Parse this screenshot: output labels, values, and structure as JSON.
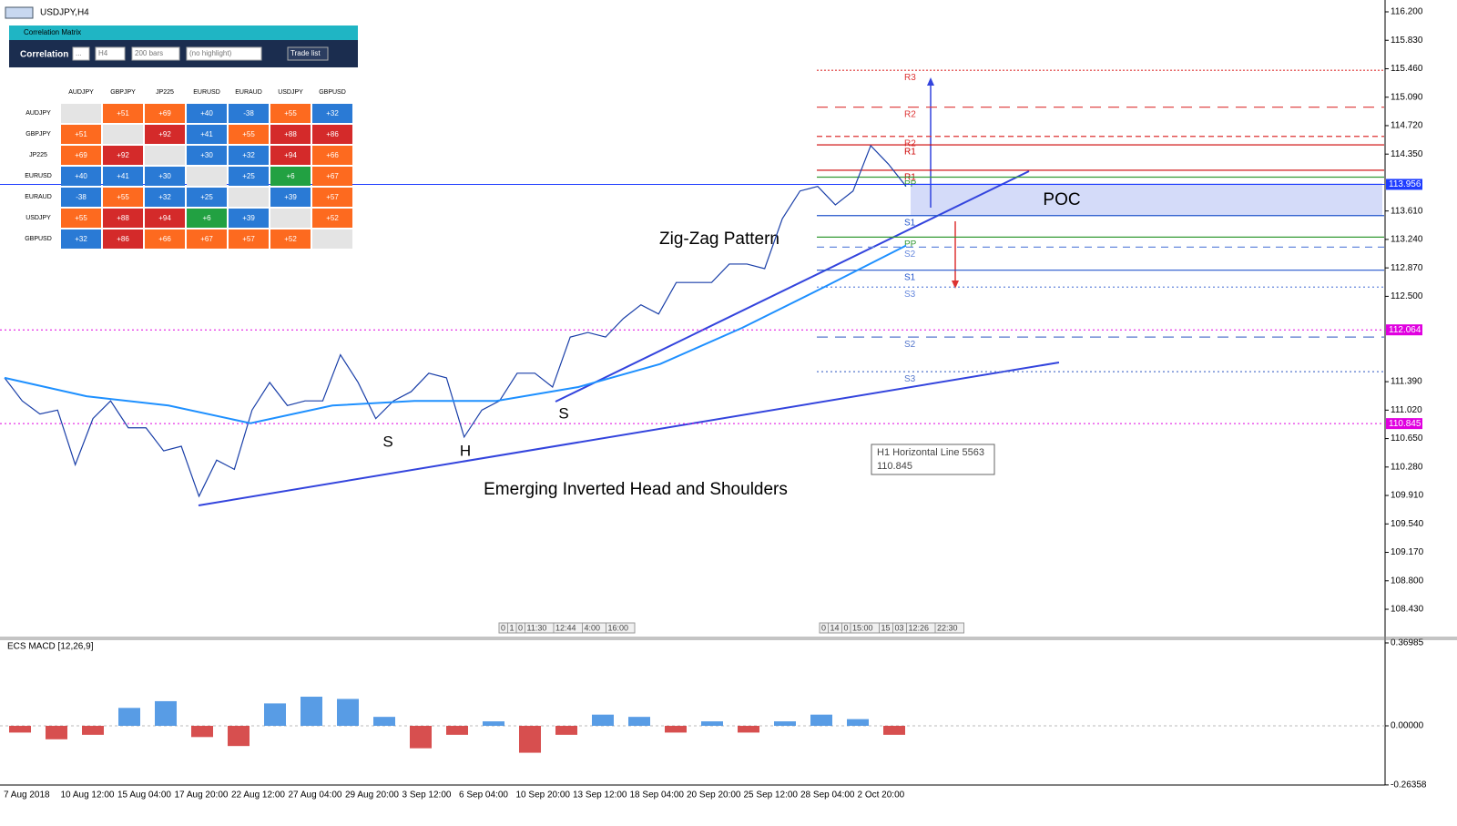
{
  "header": {
    "symbol": "USDJPY,H4"
  },
  "price_chart": {
    "ylim": [
      108.063,
      116.354
    ],
    "yticks": [
      {
        "value": 116.2,
        "label": "116.200"
      },
      {
        "value": 115.83,
        "label": "115.830"
      },
      {
        "value": 115.46,
        "label": "115.460"
      },
      {
        "value": 115.09,
        "label": "115.090"
      },
      {
        "value": 114.72,
        "label": "114.720"
      },
      {
        "value": 114.35,
        "label": "114.350"
      },
      {
        "value": 113.61,
        "label": "113.610"
      },
      {
        "value": 113.24,
        "label": "113.240"
      },
      {
        "value": 112.87,
        "label": "112.870"
      },
      {
        "value": 112.5,
        "label": "112.500"
      },
      {
        "value": 111.39,
        "label": "111.390"
      },
      {
        "value": 111.02,
        "label": "111.020"
      },
      {
        "value": 110.65,
        "label": "110.650"
      },
      {
        "value": 110.28,
        "label": "110.280"
      },
      {
        "value": 109.91,
        "label": "109.910"
      },
      {
        "value": 109.54,
        "label": "109.540"
      },
      {
        "value": 109.17,
        "label": "109.170"
      },
      {
        "value": 108.8,
        "label": "108.800"
      },
      {
        "value": 108.43,
        "label": "108.430"
      }
    ],
    "close": [
      111.44,
      111.14,
      110.97,
      111.02,
      110.31,
      110.91,
      111.14,
      110.79,
      110.79,
      110.49,
      110.55,
      109.9,
      110.37,
      110.25,
      111.02,
      111.38,
      111.08,
      111.14,
      111.14,
      111.74,
      111.38,
      110.91,
      111.14,
      111.26,
      111.5,
      111.44,
      110.67,
      111.02,
      111.14,
      111.5,
      111.5,
      111.32,
      111.97,
      112.03,
      111.97,
      112.21,
      112.39,
      112.27,
      112.68,
      112.68,
      112.68,
      112.92,
      112.92,
      112.86,
      113.51,
      113.87,
      113.93,
      113.69,
      113.87,
      114.46,
      114.22,
      113.93
    ],
    "moving_average": [
      111.44,
      111.2,
      111.08,
      110.85,
      111.08,
      111.14,
      111.14,
      111.32,
      111.62,
      112.09,
      112.62,
      113.16
    ],
    "price_labels": [
      {
        "value": 113.956,
        "label": "113.956",
        "color": "#1e3cff"
      },
      {
        "value": 112.064,
        "label": "112.064",
        "color": "#e000e0"
      },
      {
        "value": 110.845,
        "label": "110.845",
        "color": "#e000e0"
      }
    ],
    "pivot_levels": [
      {
        "label": "R3",
        "value": 115.44,
        "color": "#d33",
        "dash": "2,2"
      },
      {
        "label": "R2",
        "value": 114.96,
        "color": "#d33",
        "dash": "12,8"
      },
      {
        "label": "R2",
        "value": 114.58,
        "color": "#d33",
        "dash": "6,4"
      },
      {
        "label": "R1",
        "value": 114.47,
        "color": "#c00",
        "dash": "none"
      },
      {
        "label": "R1",
        "value": 114.14,
        "color": "#c00",
        "dash": "none"
      },
      {
        "label": "PP",
        "value": 114.05,
        "color": "#393",
        "dash": "none"
      },
      {
        "label": "S1",
        "value": 113.55,
        "color": "#2255cc",
        "dash": "none"
      },
      {
        "label": "PP",
        "value": 113.27,
        "color": "#393",
        "dash": "none"
      },
      {
        "label": "S2",
        "value": 113.14,
        "color": "#6688dd",
        "dash": "8,6"
      },
      {
        "label": "S1",
        "value": 112.84,
        "color": "#2255cc",
        "dash": "none"
      },
      {
        "label": "S3",
        "value": 112.62,
        "color": "#6688dd",
        "dash": "2,3"
      },
      {
        "label": "S2",
        "value": 111.97,
        "color": "#5577cc",
        "dash": "12,8"
      },
      {
        "label": "S3",
        "value": 111.52,
        "color": "#5577cc",
        "dash": "2,3"
      }
    ],
    "zigzag_label": "Zig-Zag Pattern",
    "pattern_label": "Emerging Inverted Head and Shoulders",
    "poc_label": "POC",
    "left_shoulder": "S",
    "head": "H",
    "right_shoulder": "S",
    "tooltip": {
      "title": "H1 Horizontal Line 5563",
      "value": "110.845"
    },
    "session_markers": [
      [
        "0",
        "1",
        "0",
        "11:30",
        "12:44",
        "4:00",
        "16:00"
      ],
      [
        "0",
        "14",
        "0",
        "15:00",
        "15",
        "03",
        "12:26",
        "22:30"
      ]
    ],
    "x_labels": [
      "7 Aug 2018",
      "10 Aug 12:00",
      "15 Aug 04:00",
      "17 Aug 20:00",
      "22 Aug 12:00",
      "27 Aug 04:00",
      "29 Aug 20:00",
      "3 Sep 12:00",
      "6 Sep 04:00",
      "10 Sep 20:00",
      "13 Sep 12:00",
      "18 Sep 04:00",
      "20 Sep 20:00",
      "25 Sep 12:00",
      "28 Sep 04:00",
      "2 Oct 20:00"
    ]
  },
  "macd": {
    "title": "ECS MACD [12,26,9]",
    "ylim": [
      -0.264,
      0.386
    ],
    "yticks": [
      {
        "value": 0.36985,
        "label": "0.36985"
      },
      {
        "value": 0,
        "label": "0.00000"
      },
      {
        "value": -0.26358,
        "label": "-0.26358"
      }
    ],
    "histogram": [
      -0.03,
      -0.06,
      -0.04,
      0.08,
      0.11,
      -0.05,
      -0.09,
      0.1,
      0.13,
      0.12,
      0.04,
      -0.1,
      -0.04,
      0.02,
      -0.12,
      -0.04,
      0.05,
      0.04,
      -0.03,
      0.02,
      -0.03,
      0.02,
      0.05,
      0.03,
      -0.04
    ]
  },
  "correlation": {
    "window_title": "Correlation Matrix",
    "title": "Correlation",
    "controls": [
      "...",
      "H4",
      "200 bars",
      "(no highlight)",
      "Trade list"
    ],
    "symbols": [
      "AUDJPY",
      "GBPJPY",
      "JP225",
      "EURUSD",
      "EURAUD",
      "USDJPY",
      "GBPUSD"
    ],
    "rows": [
      [
        null,
        "+51",
        "+69",
        "+40",
        "-38",
        "+55",
        "+32"
      ],
      [
        "+51",
        null,
        "+92",
        "+41",
        "+55",
        "+88",
        "+86"
      ],
      [
        "+69",
        "+92",
        null,
        "+30",
        "+32",
        "+94",
        "+66"
      ],
      [
        "+40",
        "+41",
        "+30",
        null,
        "+25",
        "+6",
        "+67"
      ],
      [
        "-38",
        "+55",
        "+32",
        "+25",
        null,
        "+39",
        "+57"
      ],
      [
        "+55",
        "+88",
        "+94",
        "+6",
        "+39",
        null,
        "+52"
      ],
      [
        "+32",
        "+86",
        "+66",
        "+67",
        "+57",
        "+52",
        null
      ]
    ]
  }
}
